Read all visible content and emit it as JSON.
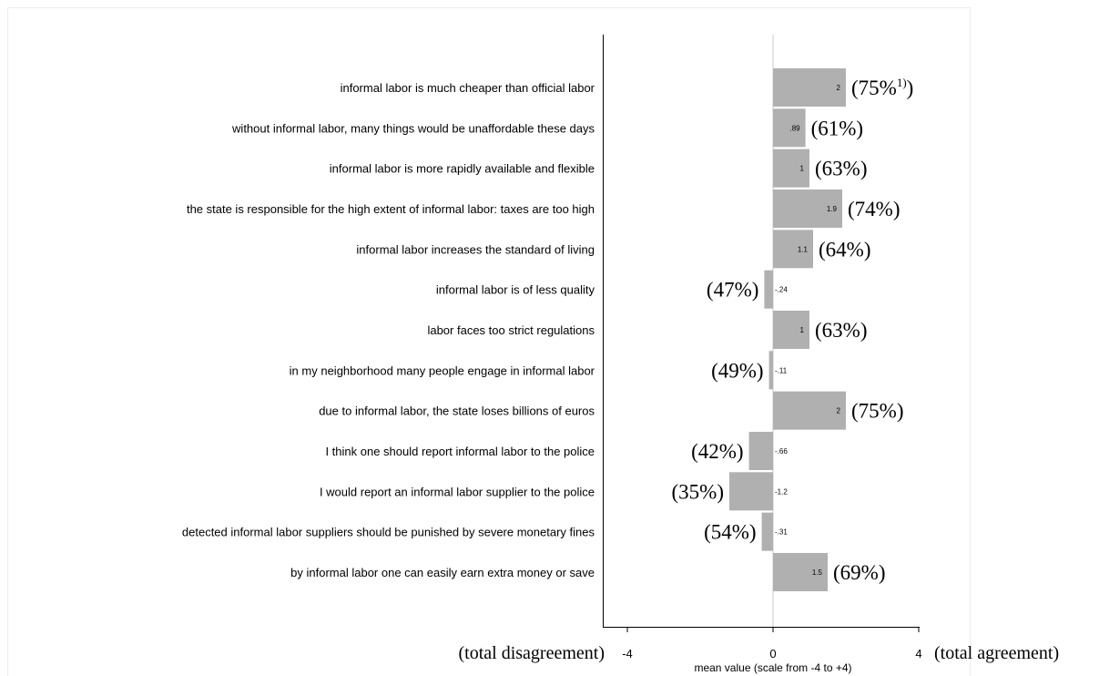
{
  "chart_data": {
    "type": "bar",
    "orientation": "horizontal",
    "categories": [
      "informal labor is much cheaper than official labor",
      "without informal labor, many things would be unaffordable these days",
      "informal labor is more rapidly available and flexible",
      "the state is responsible for the high extent of informal labor: taxes are too high",
      "informal labor increases the standard of living",
      "informal labor is of less quality",
      "labor faces too strict regulations",
      "in my neighborhood many people engage in informal labor",
      "due to informal labor, the state loses billions of euros",
      "I think one should report informal labor to the police",
      "I would report an informal labor supplier to the police",
      "detected informal labor suppliers should be punished by severe monetary fines",
      "by informal labor one can easily earn extra money or save"
    ],
    "values": [
      2,
      0.89,
      1,
      1.9,
      1.1,
      -0.24,
      1,
      -0.11,
      2,
      -0.66,
      -1.2,
      -0.31,
      1.5
    ],
    "value_labels": [
      "2",
      ".89",
      "1",
      "1.9",
      "1.1",
      "-.24",
      "1",
      "-.11",
      "2",
      "-.66",
      "-1.2",
      "-.31",
      "1.5"
    ],
    "percent_labels": [
      "(75%",
      "(61%)",
      "(63%)",
      "(74%)",
      "(64%)",
      "(47%)",
      "(63%)",
      "(49%)",
      "(75%)",
      "(42%)",
      "(35%)",
      "(54%)",
      "(69%)"
    ],
    "footnote_marker": "1)",
    "footnote_close": ")",
    "xlim": [
      -4,
      4
    ],
    "xticks": [
      "-4",
      "0",
      "4"
    ],
    "xlabel": "mean value (scale from -4 to +4)",
    "left_end_label": "(total disagreement)",
    "right_end_label": "(total agreement)",
    "bar_color": "#b0b0b0",
    "zero_line_color": "#e5e5e5"
  }
}
